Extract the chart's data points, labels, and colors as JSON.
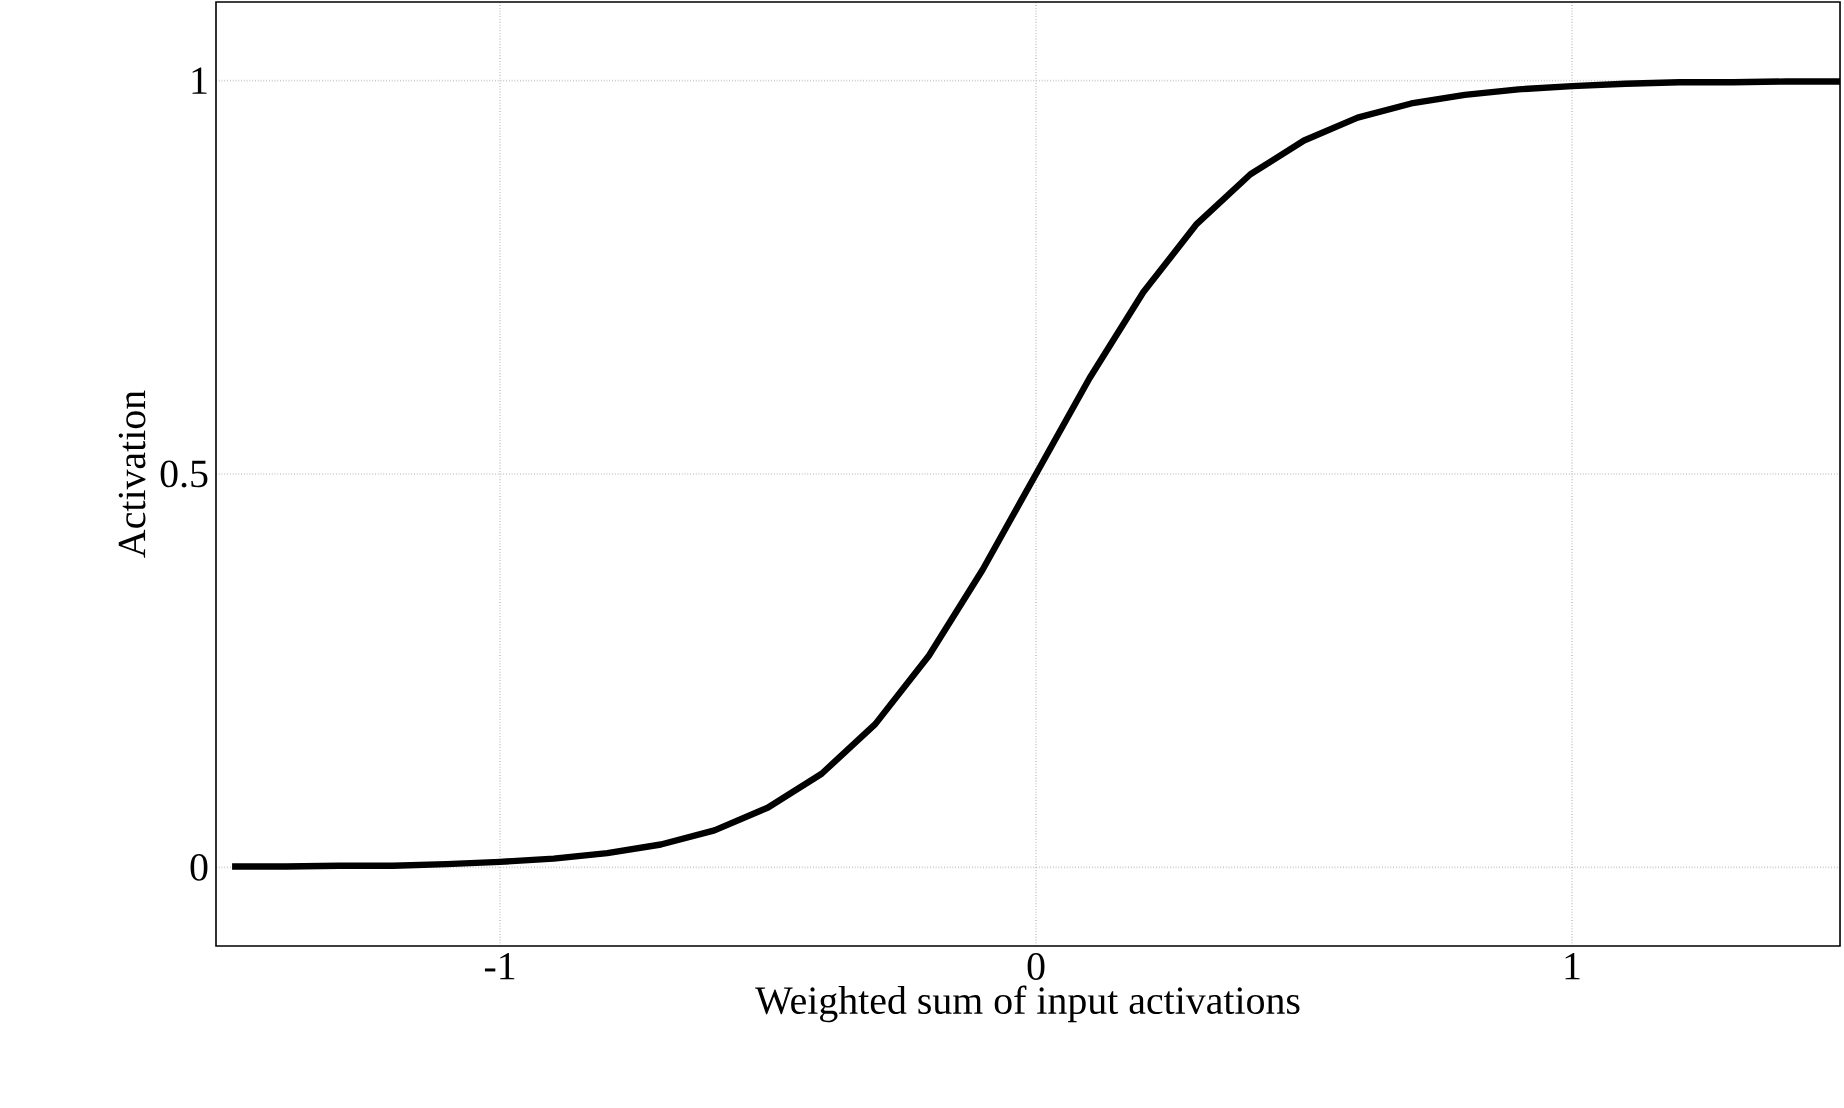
{
  "chart_data": {
    "type": "line",
    "xlabel": "Weighted sum of input activations",
    "ylabel": "Activation",
    "x": [
      -1.5,
      -1.4,
      -1.3,
      -1.2,
      -1.1,
      -1.0,
      -0.9,
      -0.8,
      -0.7,
      -0.6,
      -0.5,
      -0.4,
      -0.3,
      -0.2,
      -0.1,
      0,
      0.1,
      0.2,
      0.3,
      0.4,
      0.5,
      0.6,
      0.7,
      0.8,
      0.9,
      1.0,
      1.1,
      1.2,
      1.3,
      1.4,
      1.5
    ],
    "series": [
      {
        "color": "#000000",
        "values": [
          0.001,
          0.001,
          0.002,
          0.002,
          0.004,
          0.007,
          0.011,
          0.018,
          0.029,
          0.047,
          0.076,
          0.119,
          0.182,
          0.269,
          0.378,
          0.5,
          0.622,
          0.731,
          0.818,
          0.881,
          0.924,
          0.953,
          0.971,
          0.982,
          0.989,
          0.993,
          0.996,
          0.998,
          0.998,
          0.999,
          0.999
        ]
      }
    ],
    "xlim": [
      -1.53,
      1.5
    ],
    "ylim": [
      -0.1,
      1.1
    ],
    "xticks": [
      -1,
      0,
      1
    ],
    "yticks": [
      0,
      {
        "value": 0.5,
        "label": "0.5"
      },
      1
    ],
    "grid": true,
    "marker": "none",
    "line_style": "solid"
  }
}
